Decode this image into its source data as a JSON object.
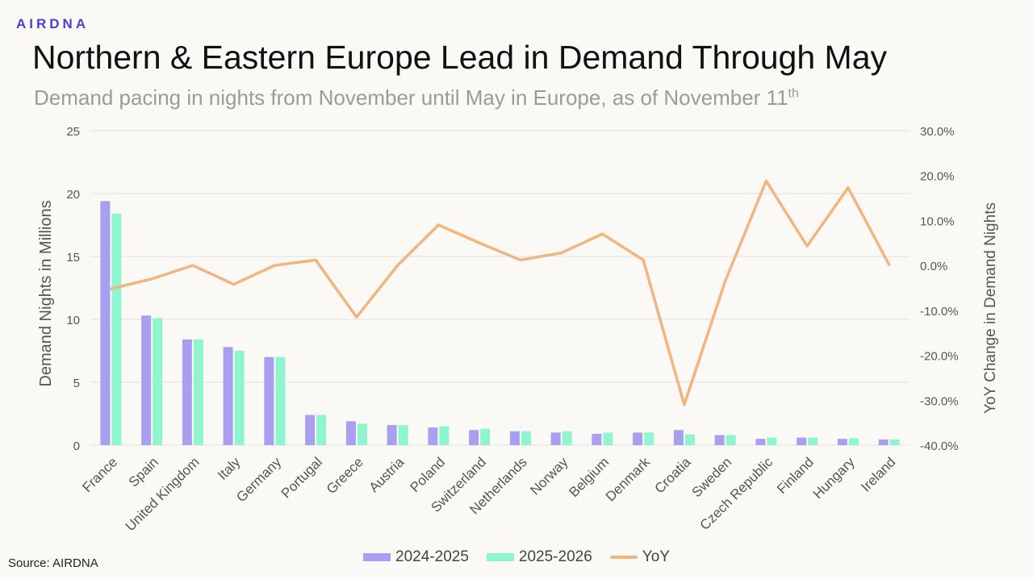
{
  "brand": "AIRDNA",
  "title": "Northern & Eastern Europe Lead in Demand Through May",
  "subtitle": {
    "text": "Demand pacing in nights from November until May in Europe, as of November 11",
    "superscript": "th"
  },
  "source": "Source: AIRDNA",
  "colors": {
    "series_2024": "#a89ff0",
    "series_2025": "#8ff5cf",
    "yoy": "#f1b57e",
    "grid": "#e1e1e1",
    "axis_text": "#555555"
  },
  "chart_data": {
    "type": "bar",
    "title": "Northern & Eastern Europe Lead in Demand Through May",
    "ylabel": "Demand Nights in Millions",
    "y2label": "YoY Change in Demand Nights",
    "ylim": [
      0,
      25
    ],
    "yticks": [
      "0",
      "5",
      "10",
      "15",
      "20",
      "25"
    ],
    "y2lim": [
      -40,
      30
    ],
    "y2ticks": [
      "-40.0%",
      "-30.0%",
      "-20.0%",
      "-10.0%",
      "0.0%",
      "10.0%",
      "20.0%",
      "30.0%"
    ],
    "categories": [
      "France",
      "Spain",
      "United Kingdom",
      "Italy",
      "Germany",
      "Portugal",
      "Greece",
      "Austria",
      "Poland",
      "Switzerland",
      "Netherlands",
      "Norway",
      "Belgium",
      "Denmark",
      "Croatia",
      "Sweden",
      "Czech Republic",
      "Finland",
      "Hungary",
      "Ireland"
    ],
    "series": [
      {
        "name": "2024-2025",
        "type": "bar",
        "axis": "left",
        "values": [
          19.4,
          10.3,
          8.4,
          7.8,
          7.0,
          2.4,
          1.9,
          1.6,
          1.4,
          1.2,
          1.1,
          1.0,
          0.9,
          1.0,
          1.2,
          0.8,
          0.5,
          0.6,
          0.5,
          0.45
        ]
      },
      {
        "name": "2025-2026",
        "type": "bar",
        "axis": "left",
        "values": [
          18.4,
          10.1,
          8.4,
          7.5,
          7.0,
          2.4,
          1.7,
          1.6,
          1.5,
          1.3,
          1.1,
          1.1,
          1.0,
          1.0,
          0.85,
          0.8,
          0.6,
          0.6,
          0.55,
          0.45
        ]
      },
      {
        "name": "YoY",
        "type": "line",
        "axis": "right",
        "values": [
          -5.2,
          -3.0,
          0.0,
          -4.2,
          0.0,
          1.2,
          -11.5,
          0.0,
          9.0,
          5.0,
          1.2,
          2.8,
          7.0,
          1.2,
          -31.0,
          -3.5,
          18.8,
          4.3,
          17.3,
          0.2
        ]
      }
    ],
    "legend": "bottom"
  }
}
